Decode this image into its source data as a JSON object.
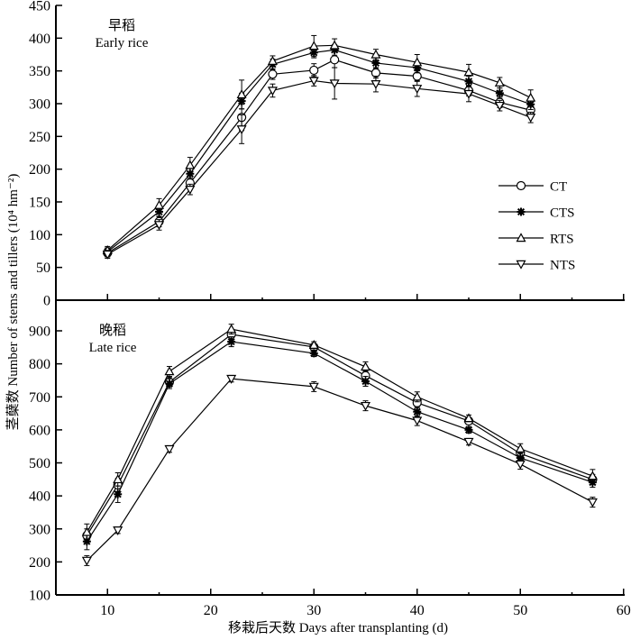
{
  "chart_data": {
    "type": "line",
    "xlabel": "移栽后天数 Days after transplanting (d)",
    "ylabel": "茎蘖数 Number of stems and tillers (10⁴ hm⁻²)",
    "xlim": [
      5,
      60
    ],
    "xticks": [
      10,
      20,
      30,
      40,
      50,
      60
    ],
    "legend": {
      "placement": "right of top panel",
      "entries": [
        {
          "name": "CT",
          "marker": "circle"
        },
        {
          "name": "CTS",
          "marker": "star"
        },
        {
          "name": "RTS",
          "marker": "triangle-up"
        },
        {
          "name": "NTS",
          "marker": "triangle-down"
        }
      ]
    },
    "panels": [
      {
        "id": "early",
        "title_cn": "早稻",
        "title_en": "Early rice",
        "ylim": [
          0,
          450
        ],
        "yticks": [
          0,
          50,
          100,
          150,
          200,
          250,
          300,
          350,
          400,
          450
        ],
        "x": [
          10,
          15,
          18,
          23,
          26,
          30,
          32,
          36,
          40,
          45,
          48,
          51
        ],
        "series": [
          {
            "name": "CT",
            "values": [
              72,
              120,
              179,
              279,
              345,
              351,
              367,
              347,
              342,
              320,
              302,
              290
            ],
            "errors": [
              6,
              8,
              8,
              20,
              8,
              10,
              12,
              8,
              8,
              8,
              8,
              8
            ]
          },
          {
            "name": "CTS",
            "values": [
              74,
              135,
              193,
              304,
              360,
              378,
              382,
              362,
              355,
              334,
              316,
              299
            ],
            "errors": [
              6,
              8,
              8,
              12,
              8,
              8,
              8,
              8,
              8,
              8,
              8,
              8
            ]
          },
          {
            "name": "RTS",
            "values": [
              76,
              145,
              206,
              314,
              365,
              388,
              389,
              375,
              363,
              348,
              332,
              309
            ],
            "errors": [
              6,
              10,
              12,
              22,
              8,
              16,
              10,
              8,
              12,
              12,
              8,
              12
            ]
          },
          {
            "name": "NTS",
            "values": [
              70,
              115,
              169,
              261,
              320,
              335,
              331,
              330,
              323,
              315,
              297,
              279
            ],
            "errors": [
              6,
              8,
              8,
              22,
              10,
              8,
              24,
              12,
              12,
              12,
              8,
              8
            ]
          }
        ]
      },
      {
        "id": "late",
        "title_cn": "晚稻",
        "title_en": "Late rice",
        "ylim": [
          100,
          950
        ],
        "yticks": [
          100,
          200,
          300,
          400,
          500,
          600,
          700,
          800,
          900
        ],
        "x": [
          8,
          11,
          16,
          22,
          30,
          35,
          40,
          45,
          50,
          57
        ],
        "series": [
          {
            "name": "CT",
            "values": [
              280,
              433,
              745,
              889,
              851,
              764,
              682,
              627,
              528,
              450
            ],
            "errors": [
              20,
              20,
              15,
              15,
              10,
              15,
              15,
              10,
              15,
              15
            ]
          },
          {
            "name": "CTS",
            "values": [
              262,
              405,
              740,
              867,
              832,
              747,
              655,
              600,
              515,
              441
            ],
            "errors": [
              25,
              25,
              15,
              15,
              10,
              15,
              15,
              10,
              15,
              15
            ]
          },
          {
            "name": "RTS",
            "values": [
              290,
              450,
              777,
              905,
              857,
              791,
              700,
              635,
              543,
              460
            ],
            "errors": [
              25,
              20,
              15,
              15,
              10,
              15,
              15,
              10,
              15,
              20
            ]
          },
          {
            "name": "NTS",
            "values": [
              204,
              296,
              542,
              755,
              731,
              673,
              628,
              564,
              496,
              381
            ],
            "errors": [
              15,
              10,
              10,
              10,
              15,
              15,
              15,
              10,
              15,
              15
            ]
          }
        ]
      }
    ]
  }
}
